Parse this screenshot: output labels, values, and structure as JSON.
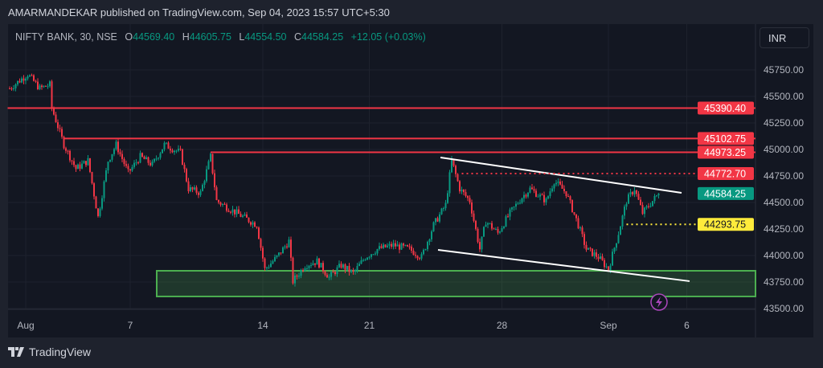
{
  "header": {
    "published": "AMARMANDEKAR published on TradingView.com, Sep 04, 2023 15:57 UTC+5:30"
  },
  "legend": {
    "symbol": "NIFTY BANK, 30, NSE",
    "o_label": "O",
    "o": "44569.40",
    "h_label": "H",
    "h": "44605.75",
    "l_label": "L",
    "l": "44554.50",
    "c_label": "C",
    "c": "44584.25",
    "change": "+12.05 (+0.03%)"
  },
  "currency": "INR",
  "footer": {
    "brand": "TradingView"
  },
  "colors": {
    "up": "#089981",
    "down": "#f23645",
    "level": "#f23645",
    "zone": "#4caf50",
    "trend": "#ffffff",
    "yellow": "#ffeb3b",
    "bg": "#131722"
  },
  "chart_data": {
    "type": "candlestick",
    "title": "NIFTY BANK, 30, NSE",
    "ylim": [
      43400,
      45950
    ],
    "y_ticks": [
      "45750.00",
      "45500.00",
      "45250.00",
      "45000.00",
      "44750.00",
      "44500.00",
      "44250.00",
      "44000.00",
      "43750.00",
      "43500.00"
    ],
    "x_ticks": [
      {
        "bar": 8,
        "label": "Aug"
      },
      {
        "bar": 60,
        "label": "7"
      },
      {
        "bar": 126,
        "label": "14"
      },
      {
        "bar": 179,
        "label": "21"
      },
      {
        "bar": 245,
        "label": "28"
      },
      {
        "bar": 298,
        "label": "Sep"
      },
      {
        "bar": 337,
        "label": "6"
      }
    ],
    "price_path": [
      [
        0,
        45575
      ],
      [
        9,
        45710
      ],
      [
        15,
        45575
      ],
      [
        20,
        45610
      ],
      [
        21,
        45390
      ],
      [
        27,
        45045
      ],
      [
        33,
        44818
      ],
      [
        39,
        44894
      ],
      [
        44,
        44363
      ],
      [
        49,
        44894
      ],
      [
        53,
        45045
      ],
      [
        59,
        44780
      ],
      [
        65,
        44932
      ],
      [
        71,
        44856
      ],
      [
        77,
        45045
      ],
      [
        85,
        44970
      ],
      [
        89,
        44630
      ],
      [
        95,
        44590
      ],
      [
        100,
        44932
      ],
      [
        103,
        44515
      ],
      [
        113,
        44400
      ],
      [
        123,
        44288
      ],
      [
        127,
        43870
      ],
      [
        133,
        43985
      ],
      [
        139,
        44136
      ],
      [
        141,
        43757
      ],
      [
        147,
        43908
      ],
      [
        153,
        43946
      ],
      [
        159,
        43795
      ],
      [
        165,
        43908
      ],
      [
        171,
        43833
      ],
      [
        177,
        43985
      ],
      [
        183,
        44060
      ],
      [
        191,
        44098
      ],
      [
        199,
        44060
      ],
      [
        205,
        43985
      ],
      [
        211,
        44288
      ],
      [
        217,
        44477
      ],
      [
        220,
        44894
      ],
      [
        224,
        44630
      ],
      [
        229,
        44515
      ],
      [
        234,
        44060
      ],
      [
        237,
        44325
      ],
      [
        243,
        44212
      ],
      [
        249,
        44400
      ],
      [
        255,
        44550
      ],
      [
        259,
        44630
      ],
      [
        267,
        44515
      ],
      [
        271,
        44705
      ],
      [
        277,
        44590
      ],
      [
        283,
        44288
      ],
      [
        287,
        44060
      ],
      [
        293,
        43985
      ],
      [
        298,
        43871
      ],
      [
        303,
        44212
      ],
      [
        307,
        44515
      ],
      [
        311,
        44630
      ],
      [
        315,
        44400
      ],
      [
        323,
        44584
      ]
    ],
    "levels": [
      {
        "price": 45390.4,
        "label": "45390.40",
        "from_bar": -1,
        "style": "solid",
        "color": "#f23645"
      },
      {
        "price": 45102.75,
        "label": "45102.75",
        "from_bar": 27,
        "style": "solid",
        "color": "#f23645"
      },
      {
        "price": 44973.25,
        "label": "44973.25",
        "from_bar": 100,
        "style": "solid",
        "color": "#f23645"
      },
      {
        "price": 44772.7,
        "label": "44772.70",
        "from_bar": 225,
        "style": "dotted",
        "color": "#f23645"
      },
      {
        "price": 44293.75,
        "label": "44293.75",
        "from_bar": 307,
        "style": "dotted",
        "color": "#ffeb3b"
      }
    ],
    "last_price": {
      "price": 44584.25,
      "label": "44584.25"
    },
    "trendlines": [
      [
        [
          214.4,
          44924
        ],
        [
          334.4,
          44591
        ]
      ],
      [
        [
          213.2,
          44053
        ],
        [
          338.4,
          43758
        ]
      ]
    ],
    "zone": {
      "from_bar": 73.2,
      "top": 43856,
      "bottom": 43614
    }
  }
}
